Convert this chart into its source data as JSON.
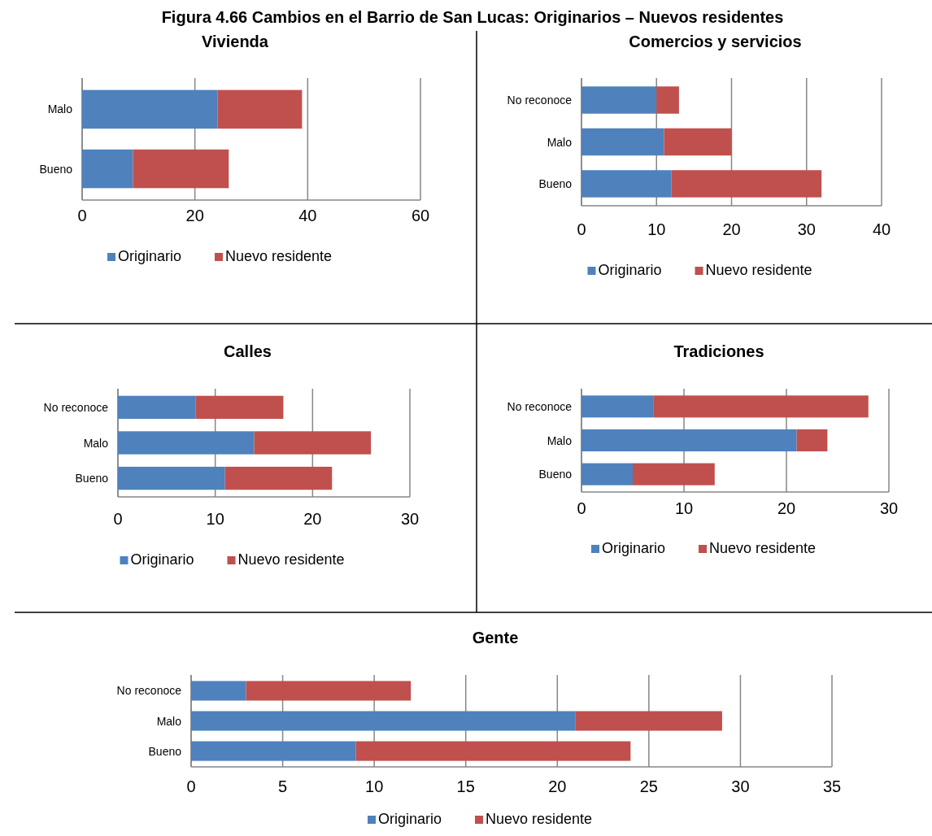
{
  "chart_data": [
    {
      "type": "other",
      "title": "Figura 4.66 Cambios en el Barrio de San Lucas: Originarios – Nuevos residentes"
    },
    {
      "type": "bar",
      "orientation": "horizontal",
      "stacked": true,
      "title": "Vivienda",
      "categories": [
        "Malo",
        "Bueno"
      ],
      "xlim": [
        0,
        60
      ],
      "xticks": [
        0,
        20,
        40,
        60
      ],
      "grid": "x",
      "legend": "bottom",
      "series": [
        {
          "name": "Originario",
          "color": "#4f81bd",
          "values": [
            24,
            9
          ]
        },
        {
          "name": "Nuevo residente",
          "color": "#c0504d",
          "values": [
            15,
            17
          ]
        }
      ]
    },
    {
      "type": "bar",
      "orientation": "horizontal",
      "stacked": true,
      "title": "Comercios y servicios",
      "categories": [
        "No reconoce",
        "Malo",
        "Bueno"
      ],
      "xlim": [
        0,
        40
      ],
      "xticks": [
        0,
        10,
        20,
        30,
        40
      ],
      "grid": "x",
      "legend": "bottom",
      "series": [
        {
          "name": "Originario",
          "color": "#4f81bd",
          "values": [
            10,
            11,
            12
          ]
        },
        {
          "name": "Nuevo residente",
          "color": "#c0504d",
          "values": [
            3,
            9,
            20
          ]
        }
      ]
    },
    {
      "type": "bar",
      "orientation": "horizontal",
      "stacked": true,
      "title": "Calles",
      "categories": [
        "No reconoce",
        "Malo",
        "Bueno"
      ],
      "xlim": [
        0,
        30
      ],
      "xticks": [
        0,
        10,
        20,
        30
      ],
      "grid": "x",
      "legend": "bottom",
      "series": [
        {
          "name": "Originario",
          "color": "#4f81bd",
          "values": [
            8,
            14,
            11
          ]
        },
        {
          "name": "Nuevo residente",
          "color": "#c0504d",
          "values": [
            9,
            12,
            11
          ]
        }
      ]
    },
    {
      "type": "bar",
      "orientation": "horizontal",
      "stacked": true,
      "title": "Tradiciones",
      "categories": [
        "No reconoce",
        "Malo",
        "Bueno"
      ],
      "xlim": [
        0,
        30
      ],
      "xticks": [
        0,
        10,
        20,
        30
      ],
      "grid": "x",
      "legend": "bottom",
      "series": [
        {
          "name": "Originario",
          "color": "#4f81bd",
          "values": [
            7,
            21,
            5
          ]
        },
        {
          "name": "Nuevo residente",
          "color": "#c0504d",
          "values": [
            21,
            3,
            8
          ]
        }
      ]
    },
    {
      "type": "bar",
      "orientation": "horizontal",
      "stacked": true,
      "title": "Gente",
      "categories": [
        "No reconoce",
        "Malo",
        "Bueno"
      ],
      "xlim": [
        0,
        35
      ],
      "xticks": [
        0,
        5,
        10,
        15,
        20,
        25,
        30,
        35
      ],
      "grid": "x",
      "legend": "bottom",
      "series": [
        {
          "name": "Originario",
          "color": "#4f81bd",
          "values": [
            3,
            21,
            9
          ]
        },
        {
          "name": "Nuevo residente",
          "color": "#c0504d",
          "values": [
            9,
            8,
            15
          ]
        }
      ]
    }
  ]
}
